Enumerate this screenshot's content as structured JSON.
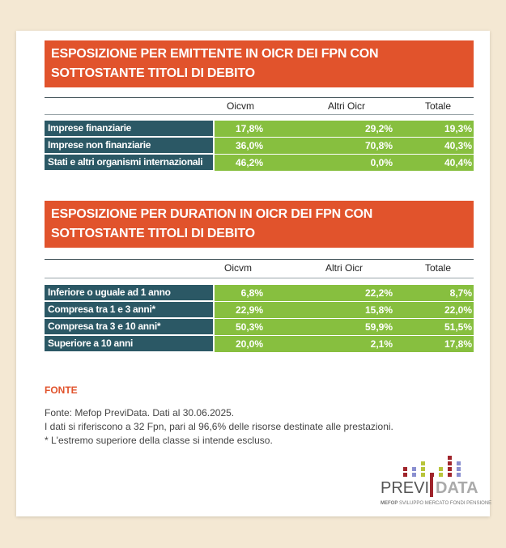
{
  "table1": {
    "title": "ESPOSIZIONE PER EMITTENTE IN OICR  DEI FPN CON SOTTOSTANTE TITOLI DI DEBITO",
    "columns": [
      "Oicvm",
      "Altri Oicr",
      "Totale"
    ],
    "rows": [
      {
        "label": "Imprese finanziarie",
        "values": [
          "17,8%",
          "29,2%",
          "19,3%"
        ]
      },
      {
        "label": "Imprese non  finanziarie",
        "values": [
          "36,0%",
          "70,8%",
          "40,3%"
        ]
      },
      {
        "label": "Stati e altri organismi internazionali",
        "values": [
          "46,2%",
          "0,0%",
          "40,4%"
        ]
      }
    ]
  },
  "table2": {
    "title": "ESPOSIZIONE PER DURATION IN OICR DEI FPN CON SOTTOSTANTE TITOLI DI DEBITO",
    "columns": [
      "Oicvm",
      "Altri Oicr",
      "Totale"
    ],
    "rows": [
      {
        "label": "Inferiore o uguale ad 1 anno",
        "values": [
          "6,8%",
          "22,2%",
          "8,7%"
        ]
      },
      {
        "label": "Compresa tra 1 e 3 anni*",
        "values": [
          "22,9%",
          "15,8%",
          "22,0%"
        ]
      },
      {
        "label": "Compresa tra 3 e 10 anni*",
        "values": [
          "50,3%",
          "59,9%",
          "51,5%"
        ]
      },
      {
        "label": "Superiore a 10 anni",
        "values": [
          "20,0%",
          "2,1%",
          "17,8%"
        ]
      }
    ]
  },
  "source": {
    "heading": "FONTE",
    "lines": [
      "Fonte: Mefop PreviData. Dati al 30.06.2025.",
      "I dati si riferiscono a 32 Fpn, pari al 96,6% delle risorse destinate alle prestazioni.",
      "* L'estremo superiore della classe si intende escluso."
    ]
  },
  "logo": {
    "left": "PREVI",
    "right": "DATA",
    "tagline_brand": "MEFOP",
    "tagline": "SVILUPPO MERCATO FONDI PENSIONE"
  },
  "colors": {
    "banner": "#e1532c",
    "label_cell": "#2b5865",
    "value_cell": "#87bf3f"
  }
}
